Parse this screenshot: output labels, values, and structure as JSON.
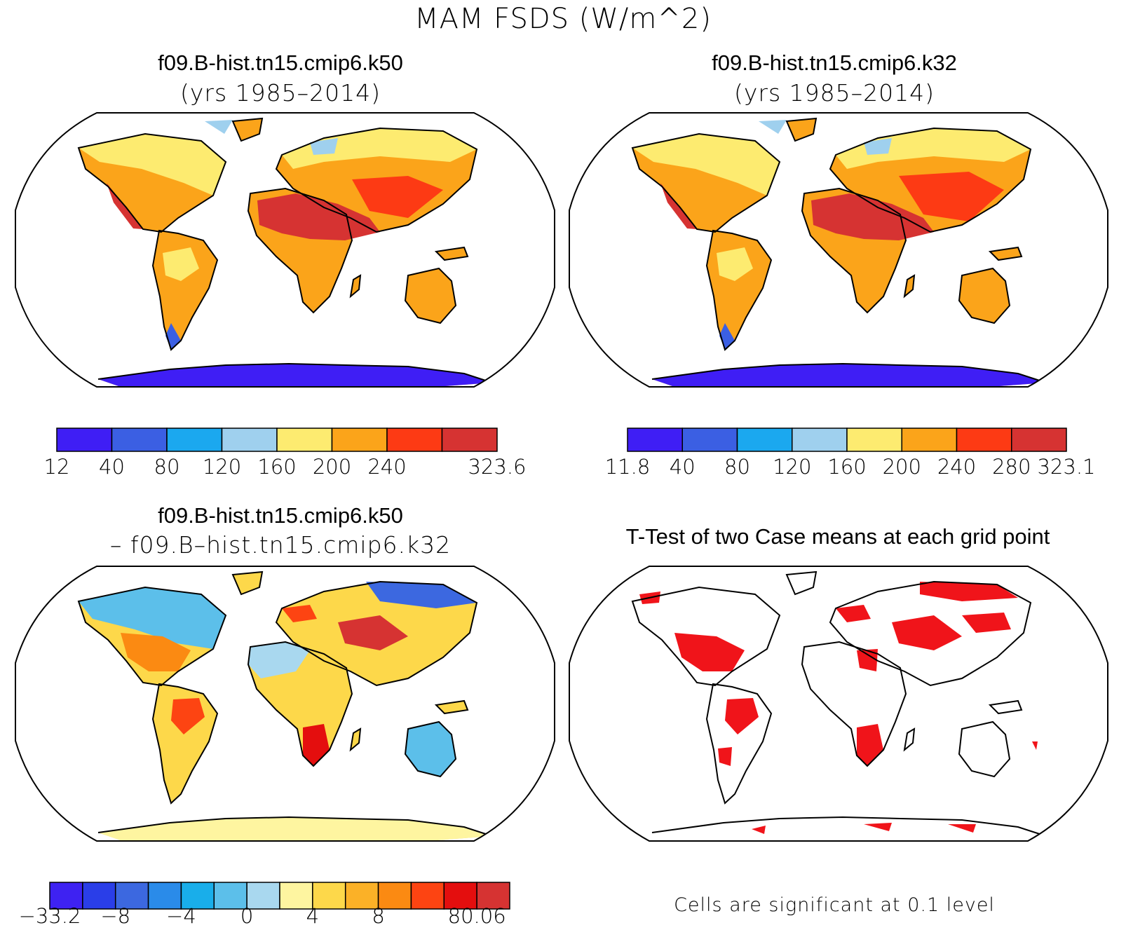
{
  "title": "MAM FSDS (W/m^2)",
  "panels": {
    "top_left": {
      "case": "f09.B-hist.tn15.cmip6.k50",
      "years": "(yrs 1985–2014)"
    },
    "top_right": {
      "case": "f09.B-hist.tn15.cmip6.k32",
      "years": "(yrs 1985–2014)"
    },
    "bottom_left": {
      "case_a": "f09.B-hist.tn15.cmip6.k50",
      "case_b": "– f09.B–hist.tn15.cmip6.k32"
    },
    "bottom_right": {
      "title": "T-Test of two Case means at each grid point",
      "note": "Cells are significant at 0.1 level"
    }
  },
  "colorbars": {
    "top_left": {
      "labels": [
        "12",
        "40",
        "80",
        "120",
        "160",
        "200",
        "240",
        "",
        "323.6"
      ],
      "colors": [
        "#3f1ef5",
        "#3b5fe3",
        "#1ba8ef",
        "#9fd0ee",
        "#fdeb70",
        "#fba41a",
        "#fd3a14",
        "#d63332"
      ]
    },
    "top_right": {
      "labels": [
        "11.8",
        "40",
        "80",
        "120",
        "160",
        "200",
        "240",
        "280",
        "323.1"
      ],
      "colors": [
        "#3f1ef5",
        "#3b5fe3",
        "#1ba8ef",
        "#9fd0ee",
        "#fdeb70",
        "#fba41a",
        "#fd3a14",
        "#d63332"
      ]
    },
    "bottom_left": {
      "labels": [
        "−33.2",
        "",
        "−8",
        "",
        "−4",
        "",
        "0",
        "",
        "4",
        "",
        "8",
        "",
        "",
        "80.06"
      ],
      "colors": [
        "#3e22f2",
        "#2a3ee8",
        "#3c68e0",
        "#2a8be9",
        "#19aeea",
        "#5cbfea",
        "#a9d8ef",
        "#fef5a0",
        "#fdd84a",
        "#fbb127",
        "#fb8a12",
        "#fd4412",
        "#e40e0e",
        "#d63332"
      ]
    }
  },
  "map_colors": {
    "ocean": "#ffffff",
    "outline": "#000000",
    "significant": "#f0141a"
  }
}
